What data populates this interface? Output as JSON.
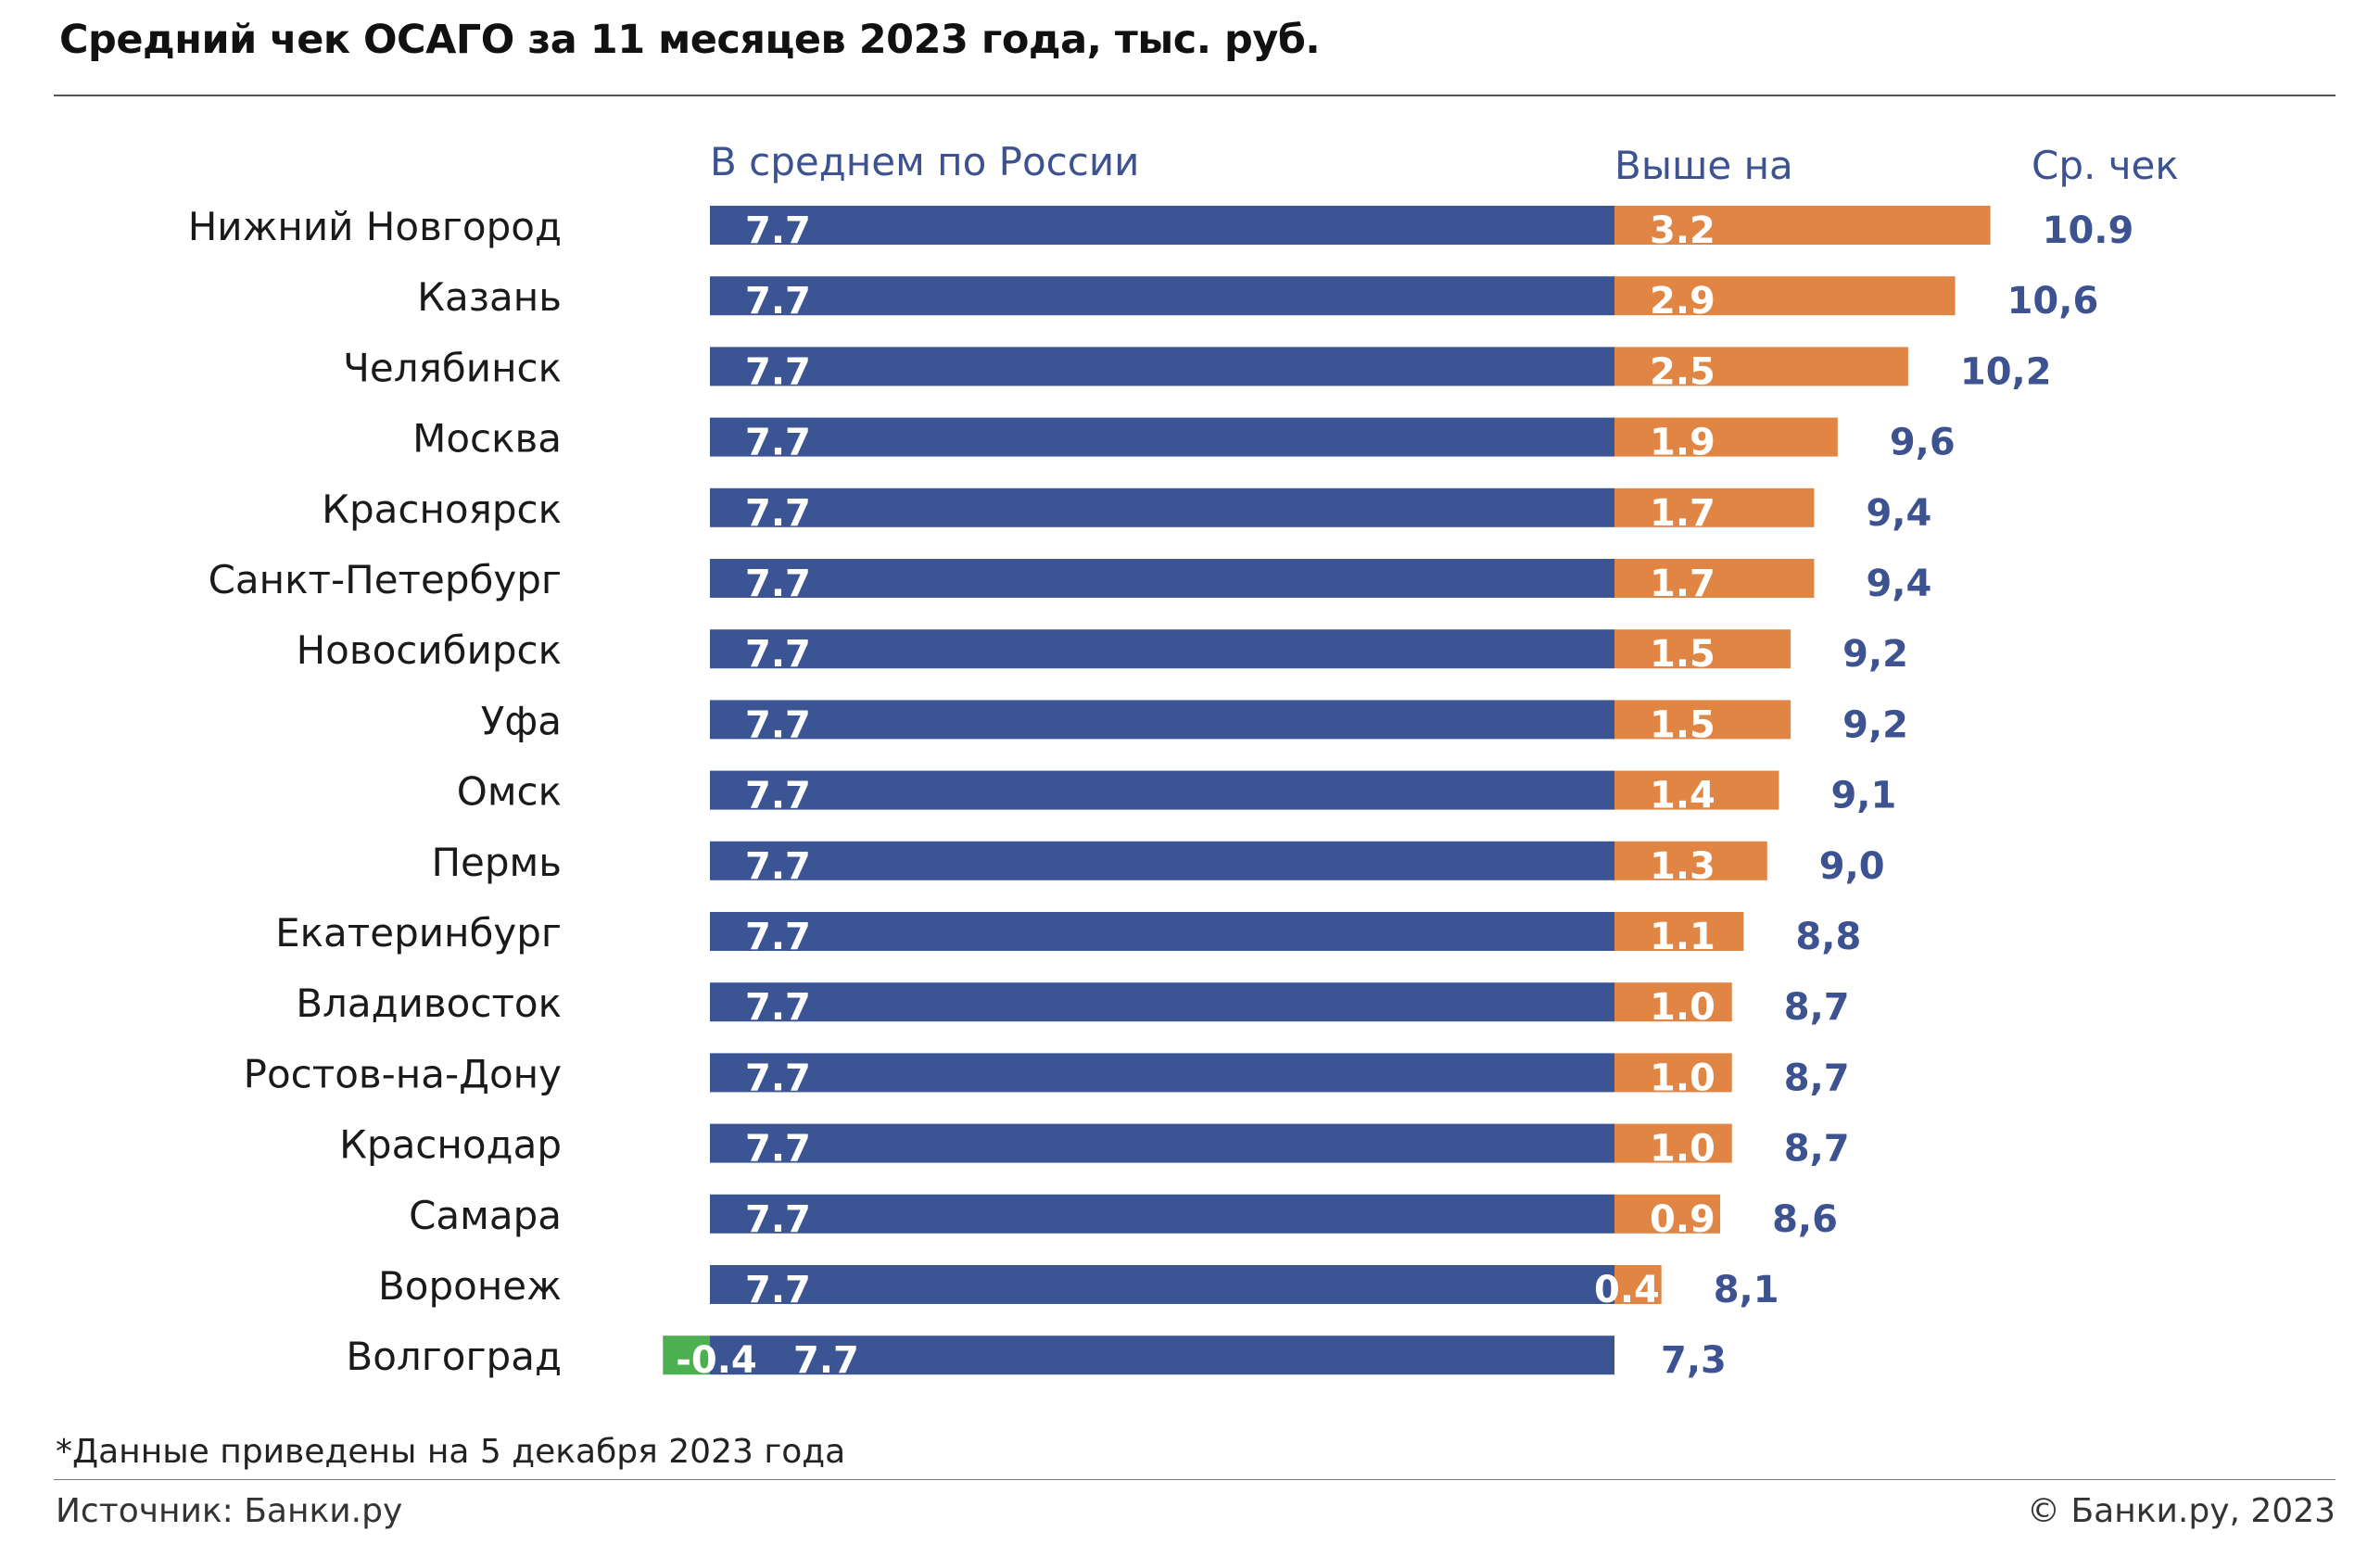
{
  "title": "Средний чек ОСАГО за 11 месяцев 2023 года, тыс. руб.",
  "headers": {
    "base": "В среднем по России",
    "diff": "Выше на",
    "total": "Ср. чек"
  },
  "footnote": "*Данные приведены на 5 декабря 2023 года",
  "source": "Источник: Банки.ру",
  "copyright": "© Банки.ру, 2023",
  "colors": {
    "base": "#3b5494",
    "above": "#e08544",
    "below": "#4caf50",
    "total_text": "#3d5290"
  },
  "chart_data": {
    "type": "bar",
    "orientation": "horizontal",
    "stacked": true,
    "categories": [
      "Нижний Новгород",
      "Казань",
      "Челябинск",
      "Москва",
      "Красноярск",
      "Санкт-Петербург",
      "Новосибирск",
      "Уфа",
      "Омск",
      "Пермь",
      "Екатеринбург",
      "Владивосток",
      "Ростов-на-Дону",
      "Краснодар",
      "Самара",
      "Воронеж",
      "Волгоград"
    ],
    "series": [
      {
        "values": [
          7.7,
          7.7,
          7.7,
          7.7,
          7.7,
          7.7,
          7.7,
          7.7,
          7.7,
          7.7,
          7.7,
          7.7,
          7.7,
          7.7,
          7.7,
          7.7,
          7.7
        ]
      },
      {
        "values": [
          3.2,
          2.9,
          2.5,
          1.9,
          1.7,
          1.7,
          1.5,
          1.5,
          1.4,
          1.3,
          1.1,
          1.0,
          1.0,
          1.0,
          0.9,
          0.4,
          -0.4
        ]
      }
    ],
    "base_labels": [
      "7.7",
      "7.7",
      "7.7",
      "7.7",
      "7.7",
      "7.7",
      "7.7",
      "7.7",
      "7.7",
      "7.7",
      "7.7",
      "7.7",
      "7.7",
      "7.7",
      "7.7",
      "7.7",
      "7.7"
    ],
    "diff_labels": [
      "3.2",
      "2.9",
      "2.5",
      "1.9",
      "1.7",
      "1.7",
      "1.5",
      "1.5",
      "1.4",
      "1.3",
      "1.1",
      "1.0",
      "1.0",
      "1.0",
      "0.9",
      "0.4",
      "-0.4"
    ],
    "total_labels": [
      "10.9",
      "10,6",
      "10,2",
      "9,6",
      "9,4",
      "9,4",
      "9,2",
      "9,2",
      "9,1",
      "9,0",
      "8,8",
      "8,7",
      "8,7",
      "8,7",
      "8,6",
      "8,1",
      "7,3"
    ]
  }
}
